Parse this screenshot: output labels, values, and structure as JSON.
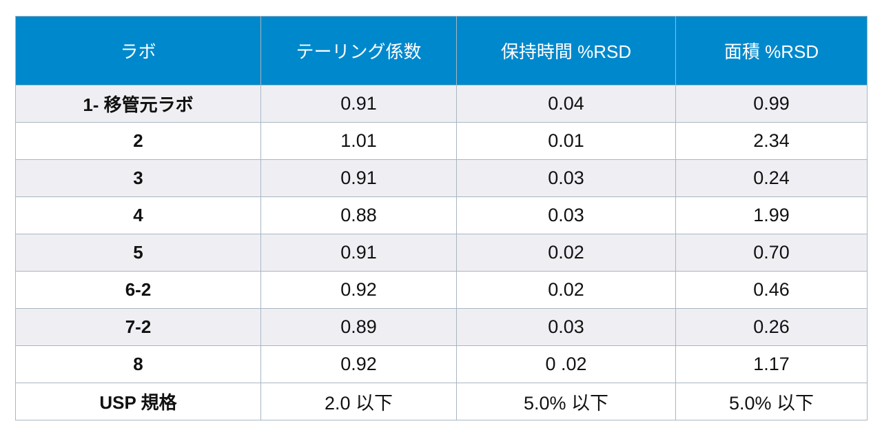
{
  "table": {
    "headers": [
      "ラボ",
      "テーリング係数",
      "保持時間 %RSD",
      "面積 %RSD"
    ],
    "rows": [
      [
        "1- 移管元ラボ",
        "0.91",
        "0.04",
        "0.99"
      ],
      [
        "2",
        "1.01",
        "0.01",
        "2.34"
      ],
      [
        "3",
        "0.91",
        "0.03",
        "0.24"
      ],
      [
        "4",
        "0.88",
        "0.03",
        "1.99"
      ],
      [
        "5",
        "0.91",
        "0.02",
        "0.70"
      ],
      [
        "6-2",
        "0.92",
        "0.02",
        "0.46"
      ],
      [
        "7-2",
        "0.89",
        "0.03",
        "0.26"
      ],
      [
        "8",
        "0.92",
        "0 .02",
        "1.17"
      ],
      [
        "USP 規格",
        "2.0 以下",
        "5.0% 以下",
        "5.0% 以下"
      ]
    ]
  },
  "colors": {
    "header_bg": "#0088cc",
    "header_text": "#ffffff",
    "row_alt_bg": "#efeff3",
    "border": "#a7b6c2"
  }
}
